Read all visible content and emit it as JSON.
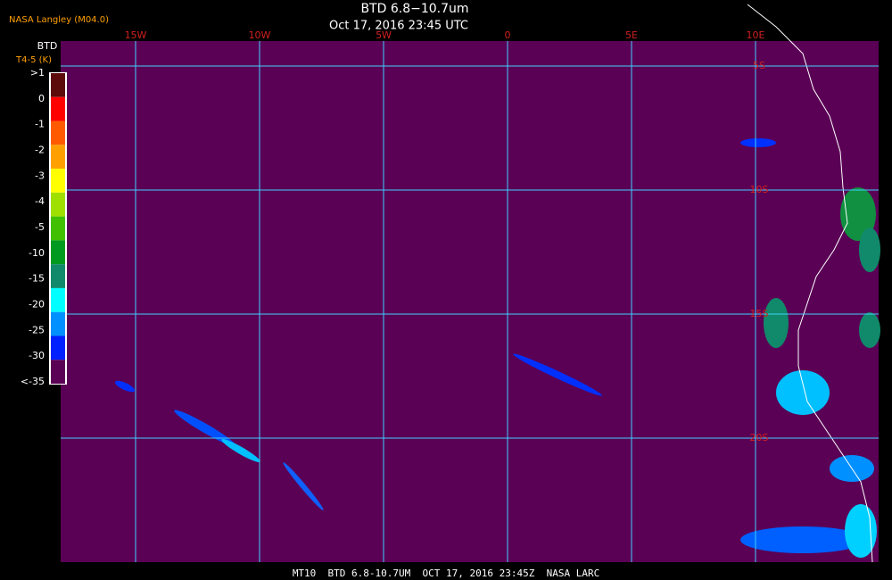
{
  "header": {
    "source": "NASA Langley (M04.0)",
    "title": "BTD 6.8−10.7um",
    "subtitle": "Oct 17, 2016 23:45 UTC"
  },
  "legend": {
    "title": "BTD",
    "subtitle": "T4-5 (K)",
    "labels": [
      ">1",
      "0",
      "-1",
      "-2",
      "-3",
      "-4",
      "-5",
      "-10",
      "-15",
      "-20",
      "-25",
      "-30",
      "<-35"
    ],
    "colors": [
      "#5c0a0a",
      "#ff0000",
      "#ff5a00",
      "#ffa000",
      "#ffff00",
      "#a0e000",
      "#40c000",
      "#009a20",
      "#108a6a",
      "#00ffff",
      "#0090ff",
      "#0020ff",
      "#5a0055"
    ]
  },
  "grid": {
    "longitudes": [
      "15W",
      "10W",
      "5W",
      "0",
      "5E",
      "10E"
    ],
    "latitudes": [
      "5S",
      "10S",
      "15S",
      "20S"
    ]
  },
  "footer": "MT10  BTD 6.8-10.7UM  OCT 17, 2016 23:45Z  NASA LARC"
}
